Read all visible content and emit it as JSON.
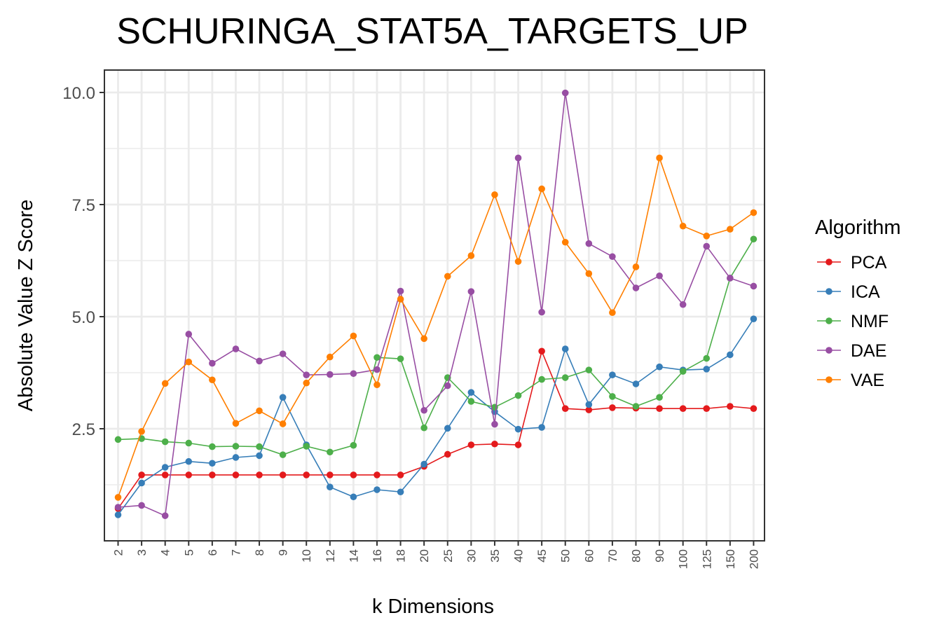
{
  "chart_data": {
    "type": "line",
    "title": "SCHURINGA_STAT5A_TARGETS_UP",
    "xlabel": "k Dimensions",
    "ylabel": "Absolute Value Z Score",
    "categories": [
      "2",
      "3",
      "4",
      "5",
      "6",
      "7",
      "8",
      "9",
      "10",
      "12",
      "14",
      "16",
      "18",
      "20",
      "25",
      "30",
      "35",
      "40",
      "45",
      "50",
      "60",
      "70",
      "80",
      "90",
      "100",
      "125",
      "150",
      "200"
    ],
    "ylim": [
      0.0,
      10.5
    ],
    "yticks": [
      2.5,
      5.0,
      7.5,
      10.0
    ],
    "ytick_labels": [
      "2.5",
      "5.0",
      "7.5",
      "10.0"
    ],
    "grid": true,
    "legend": {
      "title": "Algorithm",
      "position": "right"
    },
    "series": [
      {
        "name": "PCA",
        "color": "#e41a1c",
        "values": [
          0.72,
          1.47,
          1.47,
          1.47,
          1.47,
          1.47,
          1.47,
          1.47,
          1.47,
          1.47,
          1.47,
          1.47,
          1.47,
          1.66,
          1.93,
          2.14,
          2.16,
          2.14,
          4.23,
          2.95,
          2.92,
          2.97,
          2.96,
          2.95,
          2.95,
          2.95,
          3.0,
          2.95
        ]
      },
      {
        "name": "ICA",
        "color": "#377eb8",
        "values": [
          0.58,
          1.29,
          1.64,
          1.77,
          1.73,
          1.86,
          1.9,
          3.2,
          2.14,
          1.2,
          0.98,
          1.14,
          1.09,
          1.71,
          2.51,
          3.31,
          2.88,
          2.49,
          2.53,
          4.28,
          3.04,
          3.7,
          3.5,
          3.88,
          3.81,
          3.83,
          4.15,
          4.95
        ]
      },
      {
        "name": "NMF",
        "color": "#4daf4a",
        "values": [
          2.26,
          2.28,
          2.21,
          2.18,
          2.1,
          2.11,
          2.1,
          1.92,
          2.11,
          1.98,
          2.13,
          4.09,
          4.06,
          2.52,
          3.64,
          3.11,
          2.98,
          3.24,
          3.6,
          3.64,
          3.81,
          3.22,
          3.0,
          3.2,
          3.78,
          4.07,
          5.86,
          6.73
        ]
      },
      {
        "name": "DAE",
        "color": "#984ea3",
        "values": [
          0.75,
          0.79,
          0.56,
          4.61,
          3.96,
          4.28,
          4.01,
          4.17,
          3.7,
          3.71,
          3.73,
          3.82,
          5.57,
          2.91,
          3.46,
          5.56,
          2.6,
          8.54,
          5.1,
          9.99,
          6.63,
          6.34,
          5.64,
          5.91,
          5.27,
          6.57,
          5.86,
          5.68
        ]
      },
      {
        "name": "VAE",
        "color": "#ff7f00",
        "values": [
          0.97,
          2.44,
          3.51,
          3.99,
          3.59,
          2.62,
          2.9,
          2.61,
          3.52,
          4.1,
          4.57,
          3.48,
          5.39,
          4.51,
          5.9,
          6.36,
          7.72,
          6.23,
          7.85,
          6.66,
          5.96,
          5.09,
          6.11,
          8.54,
          7.02,
          6.8,
          6.95,
          7.32
        ]
      }
    ]
  }
}
